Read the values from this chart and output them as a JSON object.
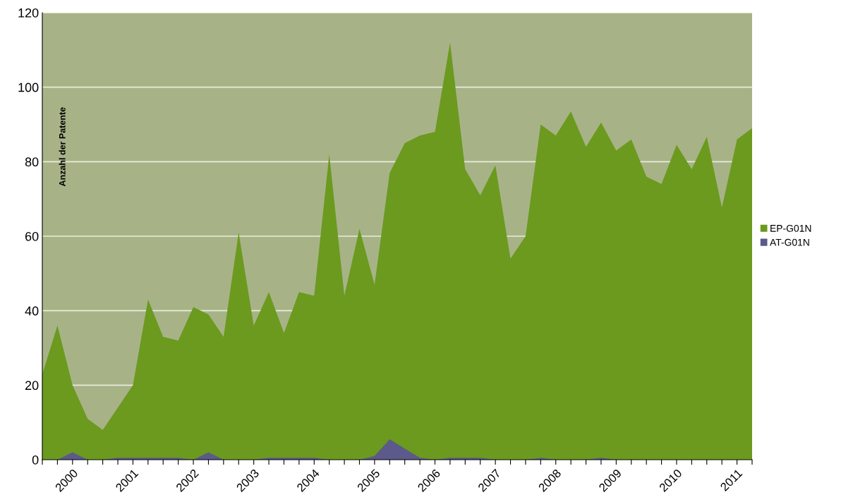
{
  "chart_data": {
    "type": "area",
    "ylabel": "Anzahl der Patente",
    "categories": [
      null,
      null,
      "2000",
      null,
      null,
      null,
      "2001",
      null,
      null,
      null,
      "2002",
      null,
      null,
      null,
      "2003",
      null,
      null,
      null,
      "2004",
      null,
      null,
      null,
      "2005",
      null,
      null,
      null,
      "2006",
      null,
      null,
      null,
      "2007",
      null,
      null,
      null,
      "2008",
      null,
      null,
      null,
      "2009",
      null,
      null,
      null,
      "2010",
      null,
      null,
      null,
      "2011",
      null
    ],
    "series": [
      {
        "name": "EP-G01N",
        "color": "#6b9a1f",
        "values": [
          23,
          36,
          20,
          11,
          8,
          14,
          20,
          43,
          33,
          32,
          41,
          39,
          33,
          61,
          36,
          45,
          34,
          45,
          44,
          82,
          44,
          62,
          47,
          77,
          85,
          87,
          88,
          112,
          78,
          71,
          79,
          54,
          60,
          90,
          87,
          93.5,
          84,
          90.5,
          83,
          86,
          76,
          74,
          84.5,
          78,
          86.7,
          67.7,
          86,
          89
        ]
      },
      {
        "name": "AT-G01N",
        "color": "#5b5a8a",
        "values": [
          0,
          0,
          2,
          0,
          0,
          0.5,
          0.5,
          0.5,
          0.5,
          0.5,
          0,
          2,
          0,
          0,
          0,
          0.5,
          0.5,
          0.5,
          0.5,
          0,
          0,
          0,
          1,
          5.5,
          3,
          0.5,
          0,
          0.5,
          0.5,
          0.5,
          0,
          0,
          0,
          0.5,
          0,
          0,
          0,
          0.5,
          0,
          0,
          0,
          0,
          0,
          0,
          0,
          0,
          0,
          0
        ]
      }
    ],
    "ylim": [
      0,
      120
    ],
    "yticks": [
      0,
      20,
      40,
      60,
      80,
      100,
      120
    ],
    "grid": "y",
    "legend": "right"
  }
}
